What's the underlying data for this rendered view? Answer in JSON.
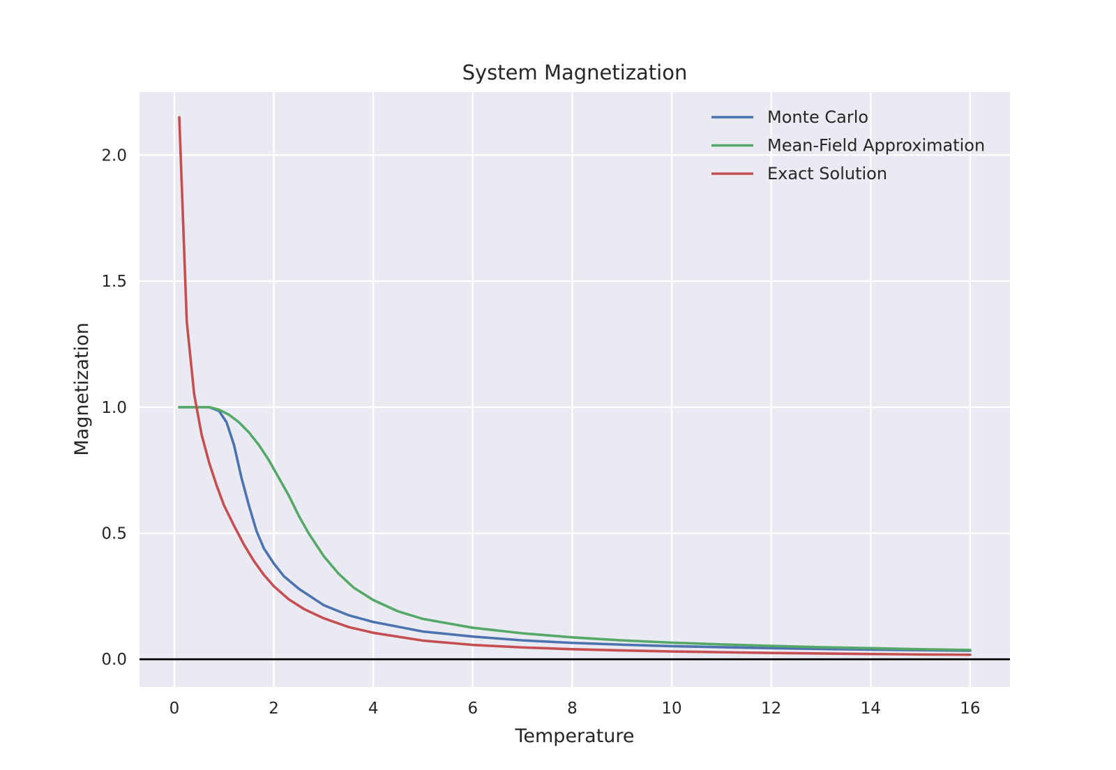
{
  "chart_data": {
    "type": "line",
    "title": "System Magnetization",
    "xlabel": "Temperature",
    "ylabel": "Magnetization",
    "xlim": [
      -0.7,
      16.8
    ],
    "ylim": [
      -0.11,
      2.25
    ],
    "xticks": [
      0,
      2,
      4,
      6,
      8,
      10,
      12,
      14,
      16
    ],
    "yticks": [
      0.0,
      0.5,
      1.0,
      1.5,
      2.0
    ],
    "xtick_labels": [
      "0",
      "2",
      "4",
      "6",
      "8",
      "10",
      "12",
      "14",
      "16"
    ],
    "ytick_labels": [
      "0.0",
      "0.5",
      "1.0",
      "1.5",
      "2.0"
    ],
    "grid": true,
    "background": "#eaeaf2",
    "hline": {
      "y": 0,
      "color": "#000000"
    },
    "legend_position": "top-right",
    "series": [
      {
        "name": "Monte Carlo",
        "color": "#4c72b0",
        "x": [
          0.1,
          0.3,
          0.5,
          0.7,
          0.9,
          1.05,
          1.2,
          1.35,
          1.5,
          1.65,
          1.8,
          2.0,
          2.2,
          2.5,
          3.0,
          3.5,
          4.0,
          5.0,
          6.0,
          7.0,
          8.0,
          9.0,
          10.0,
          11.0,
          12.0,
          13.0,
          14.0,
          15.0,
          16.0
        ],
        "y": [
          1.0,
          1.0,
          1.0,
          1.0,
          0.985,
          0.94,
          0.85,
          0.72,
          0.61,
          0.51,
          0.44,
          0.38,
          0.33,
          0.28,
          0.215,
          0.175,
          0.148,
          0.11,
          0.09,
          0.075,
          0.065,
          0.058,
          0.052,
          0.048,
          0.044,
          0.041,
          0.038,
          0.036,
          0.034
        ]
      },
      {
        "name": "Mean-Field Approximation",
        "color": "#55a868",
        "x": [
          0.1,
          0.3,
          0.5,
          0.7,
          0.9,
          1.1,
          1.3,
          1.5,
          1.7,
          1.9,
          2.1,
          2.3,
          2.5,
          2.7,
          3.0,
          3.3,
          3.6,
          4.0,
          4.5,
          5.0,
          6.0,
          7.0,
          8.0,
          9.0,
          10.0,
          11.0,
          12.0,
          13.0,
          14.0,
          15.0,
          16.0
        ],
        "y": [
          1.0,
          1.0,
          1.0,
          1.0,
          0.99,
          0.97,
          0.94,
          0.9,
          0.85,
          0.79,
          0.72,
          0.65,
          0.57,
          0.5,
          0.41,
          0.34,
          0.285,
          0.235,
          0.19,
          0.16,
          0.125,
          0.103,
          0.087,
          0.075,
          0.066,
          0.059,
          0.053,
          0.048,
          0.044,
          0.04,
          0.037
        ]
      },
      {
        "name": "Exact Solution",
        "color": "#c44e52",
        "x": [
          0.1,
          0.25,
          0.4,
          0.55,
          0.7,
          0.85,
          1.0,
          1.2,
          1.4,
          1.6,
          1.8,
          2.0,
          2.3,
          2.6,
          3.0,
          3.5,
          4.0,
          5.0,
          6.0,
          7.0,
          8.0,
          9.0,
          10.0,
          11.0,
          12.0,
          13.0,
          14.0,
          15.0,
          16.0
        ],
        "y": [
          2.15,
          1.34,
          1.05,
          0.89,
          0.78,
          0.69,
          0.61,
          0.53,
          0.455,
          0.39,
          0.335,
          0.29,
          0.238,
          0.2,
          0.163,
          0.128,
          0.105,
          0.074,
          0.057,
          0.047,
          0.04,
          0.035,
          0.031,
          0.028,
          0.025,
          0.023,
          0.021,
          0.019,
          0.018
        ]
      }
    ]
  }
}
